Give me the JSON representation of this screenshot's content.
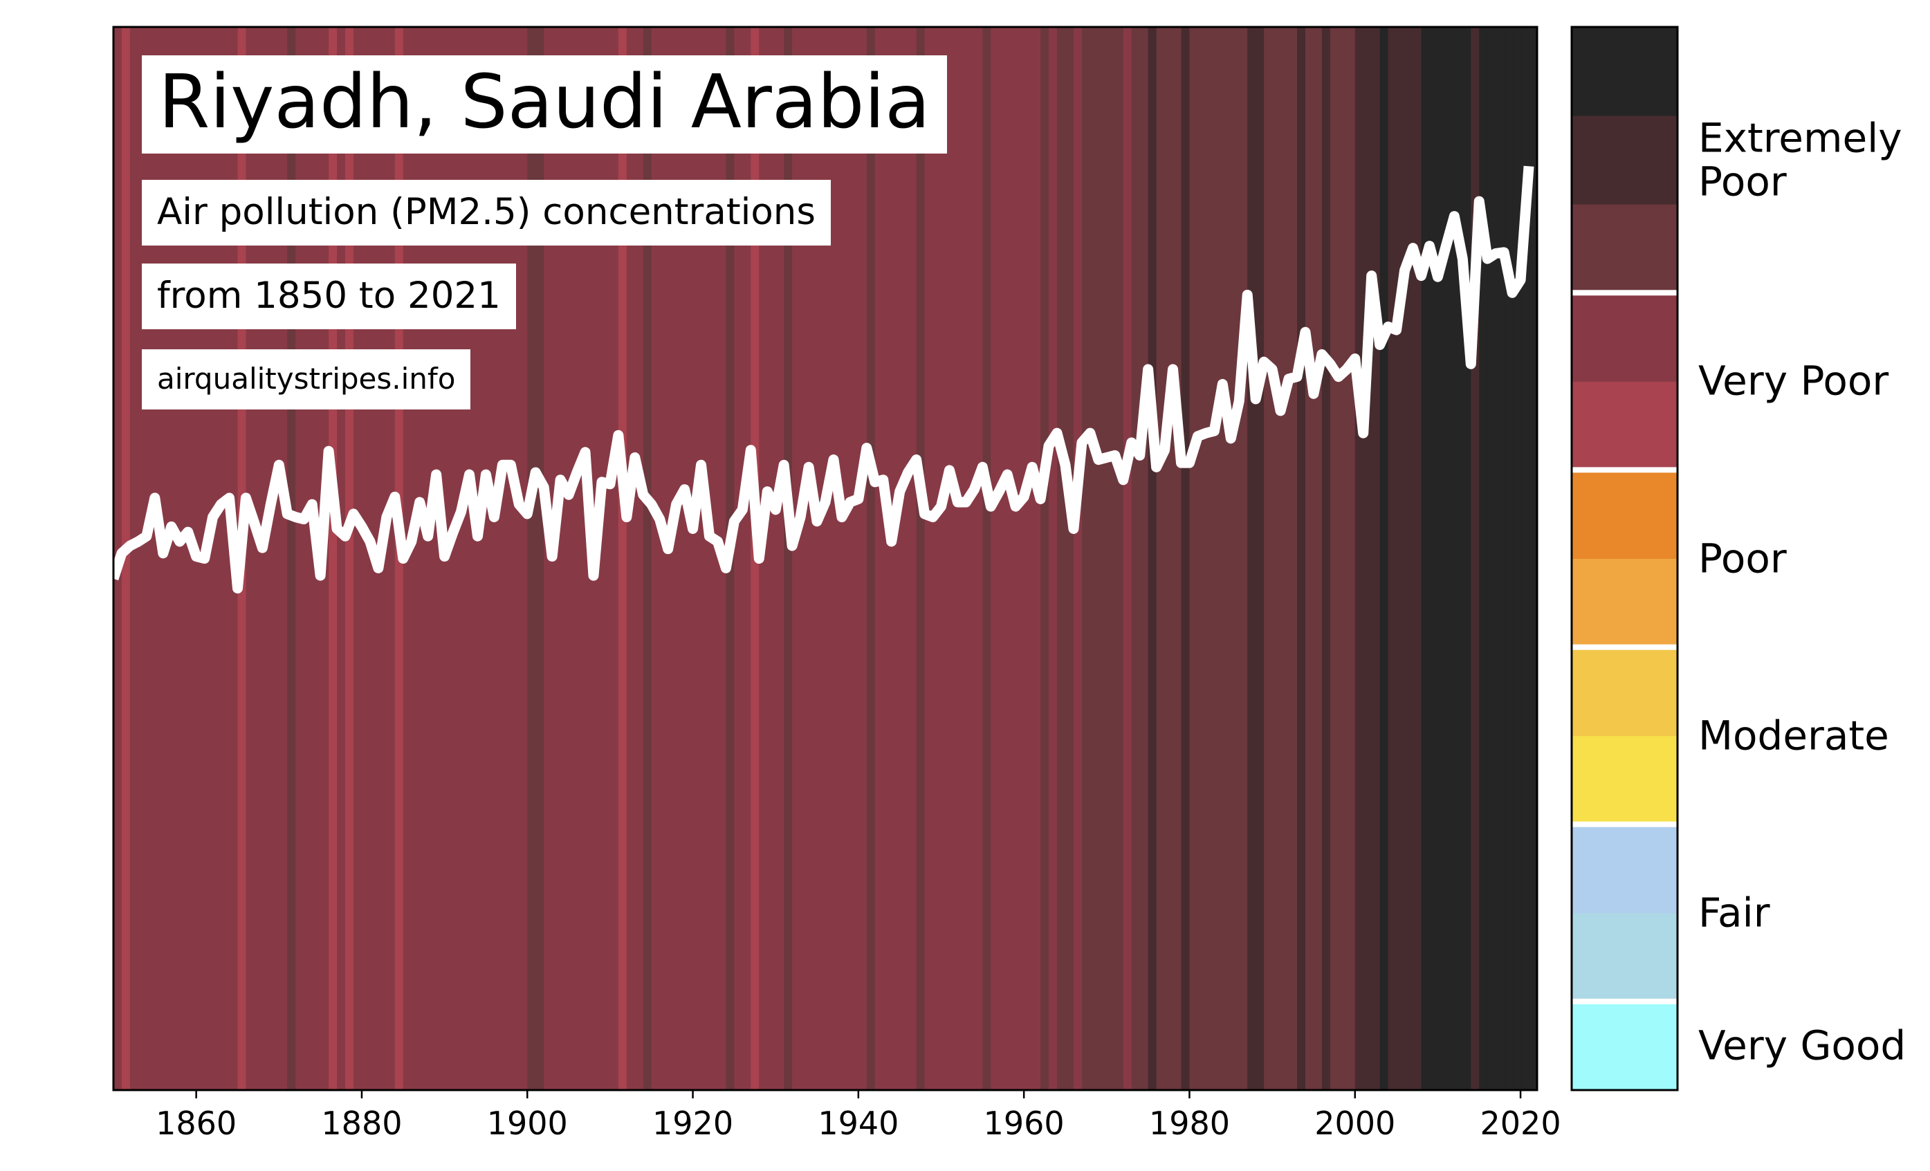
{
  "chart_data": {
    "type": "stripes",
    "title": "Riyadh, Saudi Arabia",
    "subtitle": [
      "Air pollution (PM2.5) concentrations",
      "from 1850 to 2021"
    ],
    "source": "airqualitystripes.info",
    "x": [
      1850,
      1851,
      1852,
      1853,
      1854,
      1855,
      1856,
      1857,
      1858,
      1859,
      1860,
      1861,
      1862,
      1863,
      1864,
      1865,
      1866,
      1867,
      1868,
      1869,
      1870,
      1871,
      1872,
      1873,
      1874,
      1875,
      1876,
      1877,
      1878,
      1879,
      1880,
      1881,
      1882,
      1883,
      1884,
      1885,
      1886,
      1887,
      1888,
      1889,
      1890,
      1891,
      1892,
      1893,
      1894,
      1895,
      1896,
      1897,
      1898,
      1899,
      1900,
      1901,
      1902,
      1903,
      1904,
      1905,
      1906,
      1907,
      1908,
      1909,
      1910,
      1911,
      1912,
      1913,
      1914,
      1915,
      1916,
      1917,
      1918,
      1919,
      1920,
      1921,
      1922,
      1923,
      1924,
      1925,
      1926,
      1927,
      1928,
      1929,
      1930,
      1931,
      1932,
      1933,
      1934,
      1935,
      1936,
      1937,
      1938,
      1939,
      1940,
      1941,
      1942,
      1943,
      1944,
      1945,
      1946,
      1947,
      1948,
      1949,
      1950,
      1951,
      1952,
      1953,
      1954,
      1955,
      1956,
      1957,
      1958,
      1959,
      1960,
      1961,
      1962,
      1963,
      1964,
      1965,
      1966,
      1967,
      1968,
      1969,
      1970,
      1971,
      1972,
      1973,
      1974,
      1975,
      1976,
      1977,
      1978,
      1979,
      1980,
      1981,
      1982,
      1983,
      1984,
      1985,
      1986,
      1987,
      1988,
      1989,
      1990,
      1991,
      1992,
      1993,
      1994,
      1995,
      1996,
      1997,
      1998,
      1999,
      2000,
      2001,
      2002,
      2003,
      2004,
      2005,
      2006,
      2007,
      2008,
      2009,
      2010,
      2011,
      2012,
      2013,
      2014,
      2015,
      2016,
      2017,
      2018,
      2019,
      2020,
      2021
    ],
    "values": [
      48.1,
      50.5,
      51.2,
      51.6,
      52.1,
      55.7,
      50.5,
      53.0,
      51.6,
      52.5,
      50.2,
      50.0,
      53.9,
      55.1,
      55.7,
      47.2,
      55.7,
      53.4,
      51.0,
      55.1,
      58.8,
      54.2,
      53.9,
      53.7,
      55.1,
      48.4,
      60.1,
      52.8,
      52.1,
      54.2,
      53.0,
      51.6,
      49.1,
      53.9,
      55.8,
      50.0,
      51.6,
      55.3,
      52.1,
      57.9,
      50.2,
      52.4,
      54.4,
      57.9,
      52.1,
      57.9,
      53.9,
      58.8,
      58.8,
      55.1,
      54.2,
      58.1,
      56.7,
      50.2,
      57.4,
      56.0,
      58.1,
      60.0,
      48.4,
      57.2,
      57.0,
      61.6,
      53.9,
      59.5,
      56.0,
      55.1,
      53.7,
      50.9,
      55.1,
      56.5,
      52.8,
      58.8,
      52.1,
      51.6,
      49.1,
      53.5,
      54.6,
      60.2,
      50.0,
      56.3,
      54.6,
      58.8,
      51.2,
      53.9,
      58.6,
      53.5,
      55.3,
      59.3,
      53.9,
      55.3,
      55.6,
      60.4,
      57.2,
      57.4,
      51.6,
      56.3,
      58.1,
      59.3,
      54.2,
      53.9,
      54.9,
      58.3,
      55.3,
      55.3,
      56.5,
      58.6,
      54.9,
      56.3,
      57.9,
      54.9,
      55.8,
      58.6,
      55.6,
      60.6,
      61.8,
      58.8,
      52.8,
      60.9,
      61.8,
      59.3,
      59.5,
      59.7,
      57.4,
      60.9,
      59.7,
      67.8,
      58.6,
      60.2,
      67.8,
      59.0,
      59.0,
      61.5,
      61.8,
      62.0,
      66.4,
      61.3,
      64.8,
      74.8,
      65.0,
      68.5,
      67.8,
      63.9,
      66.9,
      67.1,
      71.3,
      65.5,
      69.2,
      68.3,
      67.1,
      67.8,
      68.8,
      61.8,
      76.6,
      70.1,
      71.8,
      71.5,
      77.1,
      79.2,
      76.6,
      79.4,
      76.5,
      79.4,
      82.2,
      78.2,
      68.3,
      83.6,
      78.2,
      78.7,
      78.8,
      75.0,
      76.2,
      86.9
    ],
    "line_color": "#ffffff",
    "stripe_colors": [
      "#873a46",
      "#a8434f",
      "#873a46",
      "#873a46",
      "#873a46",
      "#873a46",
      "#873a46",
      "#873a46",
      "#873a46",
      "#873a46",
      "#873a46",
      "#873a46",
      "#873a46",
      "#873a46",
      "#873a46",
      "#a8434f",
      "#873a46",
      "#873a46",
      "#873a46",
      "#873a46",
      "#873a46",
      "#6b383d",
      "#873a46",
      "#873a46",
      "#873a46",
      "#873a46",
      "#a8434f",
      "#873a46",
      "#a8434f",
      "#873a46",
      "#873a46",
      "#873a46",
      "#873a46",
      "#873a46",
      "#a8434f",
      "#873a46",
      "#873a46",
      "#873a46",
      "#873a46",
      "#873a46",
      "#873a46",
      "#873a46",
      "#873a46",
      "#873a46",
      "#873a46",
      "#873a46",
      "#873a46",
      "#873a46",
      "#873a46",
      "#873a46",
      "#6b383d",
      "#6b383d",
      "#873a46",
      "#873a46",
      "#873a46",
      "#873a46",
      "#873a46",
      "#873a46",
      "#873a46",
      "#873a46",
      "#873a46",
      "#a8434f",
      "#873a46",
      "#873a46",
      "#6b383d",
      "#873a46",
      "#873a46",
      "#873a46",
      "#873a46",
      "#873a46",
      "#873a46",
      "#873a46",
      "#873a46",
      "#873a46",
      "#6b383d",
      "#873a46",
      "#873a46",
      "#a8434f",
      "#873a46",
      "#873a46",
      "#873a46",
      "#6b383d",
      "#873a46",
      "#873a46",
      "#873a46",
      "#873a46",
      "#873a46",
      "#873a46",
      "#873a46",
      "#873a46",
      "#873a46",
      "#6b383d",
      "#873a46",
      "#873a46",
      "#873a46",
      "#873a46",
      "#873a46",
      "#6b383d",
      "#873a46",
      "#873a46",
      "#873a46",
      "#873a46",
      "#873a46",
      "#873a46",
      "#873a46",
      "#6b383d",
      "#873a46",
      "#873a46",
      "#873a46",
      "#873a46",
      "#873a46",
      "#873a46",
      "#6b383d",
      "#873a46",
      "#6b383d",
      "#6b383d",
      "#873a46",
      "#6b383d",
      "#6b383d",
      "#6b383d",
      "#6b383d",
      "#6b383d",
      "#873a46",
      "#6b383d",
      "#6b383d",
      "#472c2f",
      "#6b383d",
      "#6b383d",
      "#6b383d",
      "#472c2f",
      "#6b383d",
      "#6b383d",
      "#6b383d",
      "#6b383d",
      "#6b383d",
      "#6b383d",
      "#6b383d",
      "#472c2f",
      "#472c2f",
      "#6b383d",
      "#6b383d",
      "#6b383d",
      "#6b383d",
      "#472c2f",
      "#6b383d",
      "#6b383d",
      "#472c2f",
      "#6b383d",
      "#6b383d",
      "#6b383d",
      "#472c2f",
      "#472c2f",
      "#472c2f",
      "#252525",
      "#472c2f",
      "#472c2f",
      "#472c2f",
      "#472c2f",
      "#252525",
      "#252525",
      "#252525",
      "#252525",
      "#252525",
      "#252525",
      "#472c2f",
      "#252525",
      "#252525",
      "#252525",
      "#252525",
      "#252525",
      "#252525",
      "#252525"
    ],
    "xlim": [
      1850,
      2022
    ],
    "ylim": [
      0,
      100
    ],
    "xticks": [
      1860,
      1880,
      1900,
      1920,
      1940,
      1960,
      1980,
      2000,
      2020
    ],
    "legend": [
      {
        "label": "Very Good",
        "colors": [
          "#a0fbfd"
        ]
      },
      {
        "label": "Fair",
        "colors": [
          "#add8e6",
          "#b0cfee"
        ]
      },
      {
        "label": "Moderate",
        "colors": [
          "#f7e04a",
          "#f2c74a"
        ]
      },
      {
        "label": "Poor",
        "colors": [
          "#f0a742",
          "#e8882a"
        ]
      },
      {
        "label": "Very Poor",
        "colors": [
          "#a8434f",
          "#873a46"
        ]
      },
      {
        "label": "Extremely Poor",
        "colors": [
          "#6b383d",
          "#472c2f",
          "#252525"
        ]
      }
    ]
  }
}
